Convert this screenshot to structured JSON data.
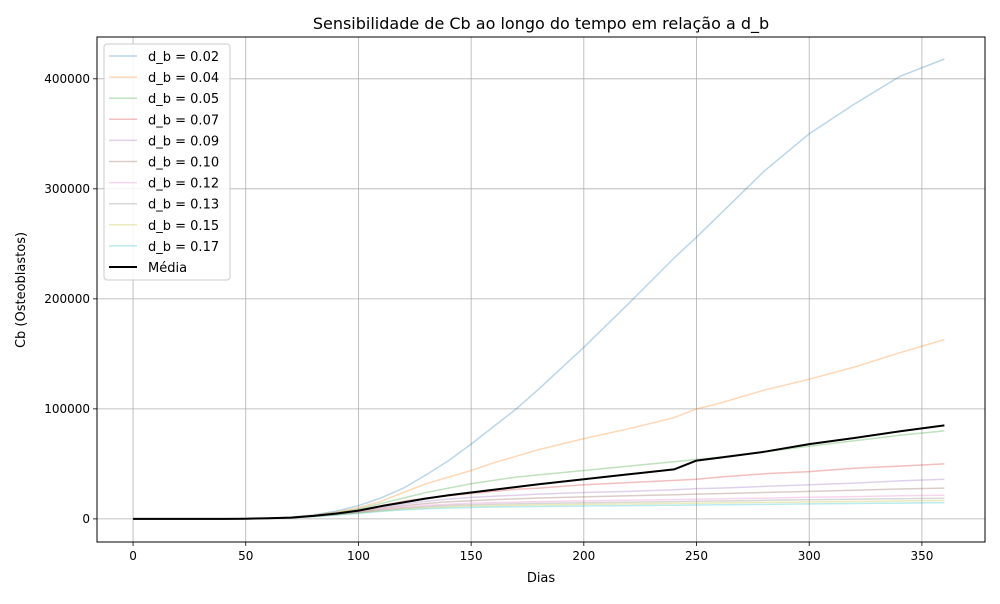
{
  "chart_data": {
    "type": "line",
    "title": "Sensibilidade de Cb ao longo do tempo em relação a d_b",
    "xlabel": "Dias",
    "ylabel": "Cb (Osteoblastos)",
    "xlim": [
      -16,
      378
    ],
    "ylim": [
      -21000,
      438000
    ],
    "xticks": [
      0,
      50,
      100,
      150,
      200,
      250,
      300,
      350
    ],
    "yticks": [
      0,
      100000,
      200000,
      300000,
      400000
    ],
    "grid": true,
    "legend_position": "upper left",
    "x": [
      0,
      20,
      40,
      50,
      60,
      70,
      80,
      90,
      100,
      110,
      120,
      130,
      140,
      150,
      160,
      170,
      180,
      200,
      220,
      240,
      250,
      260,
      280,
      300,
      320,
      340,
      360
    ],
    "series": [
      {
        "name": "d_b = 0.02",
        "color": "#1f77b4",
        "values": [
          0,
          0,
          0,
          200,
          600,
          1500,
          3500,
          7000,
          12000,
          19000,
          28000,
          40000,
          53000,
          68000,
          84000,
          100000,
          118000,
          156000,
          196000,
          237000,
          256000,
          276000,
          316000,
          350000,
          377000,
          402000,
          418000
        ]
      },
      {
        "name": "d_b = 0.04",
        "color": "#ff7f0e",
        "values": [
          0,
          0,
          0,
          200,
          600,
          1400,
          3200,
          6000,
          10000,
          16000,
          24000,
          32000,
          38000,
          44000,
          51000,
          57000,
          63000,
          73000,
          82000,
          92000,
          100000,
          105000,
          117000,
          127000,
          138000,
          151000,
          163000
        ]
      },
      {
        "name": "d_b = 0.05",
        "color": "#2ca02c",
        "values": [
          0,
          0,
          0,
          200,
          600,
          1300,
          3000,
          5500,
          9000,
          14000,
          19000,
          24000,
          28000,
          32000,
          35000,
          38000,
          40000,
          44000,
          48000,
          52000,
          54000,
          56000,
          61000,
          66000,
          71000,
          76000,
          80000
        ]
      },
      {
        "name": "d_b = 0.07",
        "color": "#d62728",
        "values": [
          0,
          0,
          0,
          200,
          550,
          1200,
          2800,
          5000,
          8000,
          12000,
          16000,
          19000,
          21000,
          23000,
          25000,
          27000,
          28000,
          31000,
          33000,
          35000,
          36000,
          38000,
          41000,
          43000,
          46000,
          48000,
          50000
        ]
      },
      {
        "name": "d_b = 0.09",
        "color": "#9467bd",
        "values": [
          0,
          0,
          0,
          200,
          500,
          1150,
          2600,
          4700,
          7200,
          10500,
          13500,
          16000,
          18000,
          19500,
          20500,
          21500,
          22500,
          24000,
          25000,
          26500,
          27500,
          28000,
          29500,
          31000,
          32500,
          34500,
          36000
        ]
      },
      {
        "name": "d_b = 0.10",
        "color": "#8c564b",
        "values": [
          0,
          0,
          0,
          200,
          500,
          1100,
          2500,
          4400,
          6700,
          9500,
          12000,
          14000,
          15500,
          16500,
          17500,
          18200,
          19000,
          20000,
          21000,
          22000,
          22500,
          23000,
          24000,
          25000,
          26000,
          27200,
          28000
        ]
      },
      {
        "name": "d_b = 0.12",
        "color": "#e377c2",
        "values": [
          0,
          0,
          0,
          200,
          500,
          1050,
          2400,
          4100,
          6200,
          8600,
          10600,
          12300,
          13400,
          14200,
          14800,
          15300,
          15700,
          16400,
          17000,
          17600,
          17900,
          18200,
          18900,
          19600,
          20300,
          21000,
          21500
        ]
      },
      {
        "name": "d_b = 0.13",
        "color": "#7f7f7f",
        "values": [
          0,
          0,
          0,
          200,
          480,
          1000,
          2300,
          3900,
          5800,
          8000,
          9800,
          11200,
          12200,
          12900,
          13400,
          13800,
          14100,
          14700,
          15200,
          15700,
          16000,
          16300,
          16900,
          17400,
          17900,
          18400,
          18800
        ]
      },
      {
        "name": "d_b = 0.15",
        "color": "#bcbd22",
        "values": [
          0,
          0,
          0,
          200,
          460,
          950,
          2200,
          3700,
          5400,
          7400,
          9000,
          10200,
          11000,
          11600,
          12000,
          12400,
          12700,
          13200,
          13600,
          14000,
          14200,
          14500,
          15000,
          15400,
          15800,
          16300,
          16700
        ]
      },
      {
        "name": "d_b = 0.17",
        "color": "#17becf",
        "values": [
          0,
          0,
          0,
          200,
          440,
          900,
          2100,
          3500,
          5000,
          6800,
          8200,
          9200,
          9900,
          10400,
          10800,
          11100,
          11300,
          11700,
          12100,
          12400,
          12600,
          12800,
          13200,
          13600,
          14000,
          14400,
          14800
        ]
      },
      {
        "name": "Média",
        "color": "#000000",
        "values": [
          0,
          0,
          0,
          200,
          500,
          1200,
          2700,
          4800,
          7500,
          11500,
          15000,
          18500,
          21500,
          24000,
          26500,
          29000,
          31500,
          36000,
          40500,
          45000,
          53000,
          55500,
          61000,
          68000,
          73500,
          79500,
          85000
        ]
      }
    ]
  }
}
